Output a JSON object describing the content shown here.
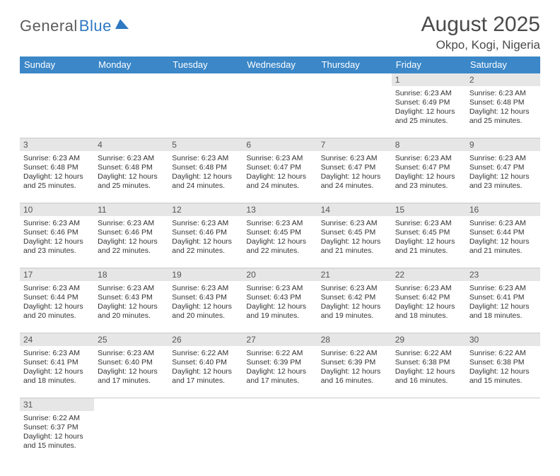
{
  "logo": {
    "text1": "General",
    "text2": "Blue"
  },
  "title": "August 2025",
  "location": "Okpo, Kogi, Nigeria",
  "colors": {
    "header_bg": "#3b87c8",
    "daynum_bg": "#e6e6e6",
    "border": "#c9c9c9",
    "logo_gray": "#5b5b5b",
    "logo_blue": "#2f78c2"
  },
  "day_headers": [
    "Sunday",
    "Monday",
    "Tuesday",
    "Wednesday",
    "Thursday",
    "Friday",
    "Saturday"
  ],
  "weeks": [
    [
      null,
      null,
      null,
      null,
      null,
      {
        "n": "1",
        "sr": "6:23 AM",
        "ss": "6:49 PM",
        "dh": "12",
        "dm": "25"
      },
      {
        "n": "2",
        "sr": "6:23 AM",
        "ss": "6:48 PM",
        "dh": "12",
        "dm": "25"
      }
    ],
    [
      {
        "n": "3",
        "sr": "6:23 AM",
        "ss": "6:48 PM",
        "dh": "12",
        "dm": "25"
      },
      {
        "n": "4",
        "sr": "6:23 AM",
        "ss": "6:48 PM",
        "dh": "12",
        "dm": "25"
      },
      {
        "n": "5",
        "sr": "6:23 AM",
        "ss": "6:48 PM",
        "dh": "12",
        "dm": "24"
      },
      {
        "n": "6",
        "sr": "6:23 AM",
        "ss": "6:47 PM",
        "dh": "12",
        "dm": "24"
      },
      {
        "n": "7",
        "sr": "6:23 AM",
        "ss": "6:47 PM",
        "dh": "12",
        "dm": "24"
      },
      {
        "n": "8",
        "sr": "6:23 AM",
        "ss": "6:47 PM",
        "dh": "12",
        "dm": "23"
      },
      {
        "n": "9",
        "sr": "6:23 AM",
        "ss": "6:47 PM",
        "dh": "12",
        "dm": "23"
      }
    ],
    [
      {
        "n": "10",
        "sr": "6:23 AM",
        "ss": "6:46 PM",
        "dh": "12",
        "dm": "23"
      },
      {
        "n": "11",
        "sr": "6:23 AM",
        "ss": "6:46 PM",
        "dh": "12",
        "dm": "22"
      },
      {
        "n": "12",
        "sr": "6:23 AM",
        "ss": "6:46 PM",
        "dh": "12",
        "dm": "22"
      },
      {
        "n": "13",
        "sr": "6:23 AM",
        "ss": "6:45 PM",
        "dh": "12",
        "dm": "22"
      },
      {
        "n": "14",
        "sr": "6:23 AM",
        "ss": "6:45 PM",
        "dh": "12",
        "dm": "21"
      },
      {
        "n": "15",
        "sr": "6:23 AM",
        "ss": "6:45 PM",
        "dh": "12",
        "dm": "21"
      },
      {
        "n": "16",
        "sr": "6:23 AM",
        "ss": "6:44 PM",
        "dh": "12",
        "dm": "21"
      }
    ],
    [
      {
        "n": "17",
        "sr": "6:23 AM",
        "ss": "6:44 PM",
        "dh": "12",
        "dm": "20"
      },
      {
        "n": "18",
        "sr": "6:23 AM",
        "ss": "6:43 PM",
        "dh": "12",
        "dm": "20"
      },
      {
        "n": "19",
        "sr": "6:23 AM",
        "ss": "6:43 PM",
        "dh": "12",
        "dm": "20"
      },
      {
        "n": "20",
        "sr": "6:23 AM",
        "ss": "6:43 PM",
        "dh": "12",
        "dm": "19"
      },
      {
        "n": "21",
        "sr": "6:23 AM",
        "ss": "6:42 PM",
        "dh": "12",
        "dm": "19"
      },
      {
        "n": "22",
        "sr": "6:23 AM",
        "ss": "6:42 PM",
        "dh": "12",
        "dm": "18"
      },
      {
        "n": "23",
        "sr": "6:23 AM",
        "ss": "6:41 PM",
        "dh": "12",
        "dm": "18"
      }
    ],
    [
      {
        "n": "24",
        "sr": "6:23 AM",
        "ss": "6:41 PM",
        "dh": "12",
        "dm": "18"
      },
      {
        "n": "25",
        "sr": "6:23 AM",
        "ss": "6:40 PM",
        "dh": "12",
        "dm": "17"
      },
      {
        "n": "26",
        "sr": "6:22 AM",
        "ss": "6:40 PM",
        "dh": "12",
        "dm": "17"
      },
      {
        "n": "27",
        "sr": "6:22 AM",
        "ss": "6:39 PM",
        "dh": "12",
        "dm": "17"
      },
      {
        "n": "28",
        "sr": "6:22 AM",
        "ss": "6:39 PM",
        "dh": "12",
        "dm": "16"
      },
      {
        "n": "29",
        "sr": "6:22 AM",
        "ss": "6:38 PM",
        "dh": "12",
        "dm": "16"
      },
      {
        "n": "30",
        "sr": "6:22 AM",
        "ss": "6:38 PM",
        "dh": "12",
        "dm": "15"
      }
    ],
    [
      {
        "n": "31",
        "sr": "6:22 AM",
        "ss": "6:37 PM",
        "dh": "12",
        "dm": "15"
      },
      null,
      null,
      null,
      null,
      null,
      null
    ]
  ],
  "labels": {
    "sunrise": "Sunrise:",
    "sunset": "Sunset:",
    "daylight": "Daylight:",
    "hours": "hours",
    "and": "and",
    "minutes": "minutes."
  }
}
